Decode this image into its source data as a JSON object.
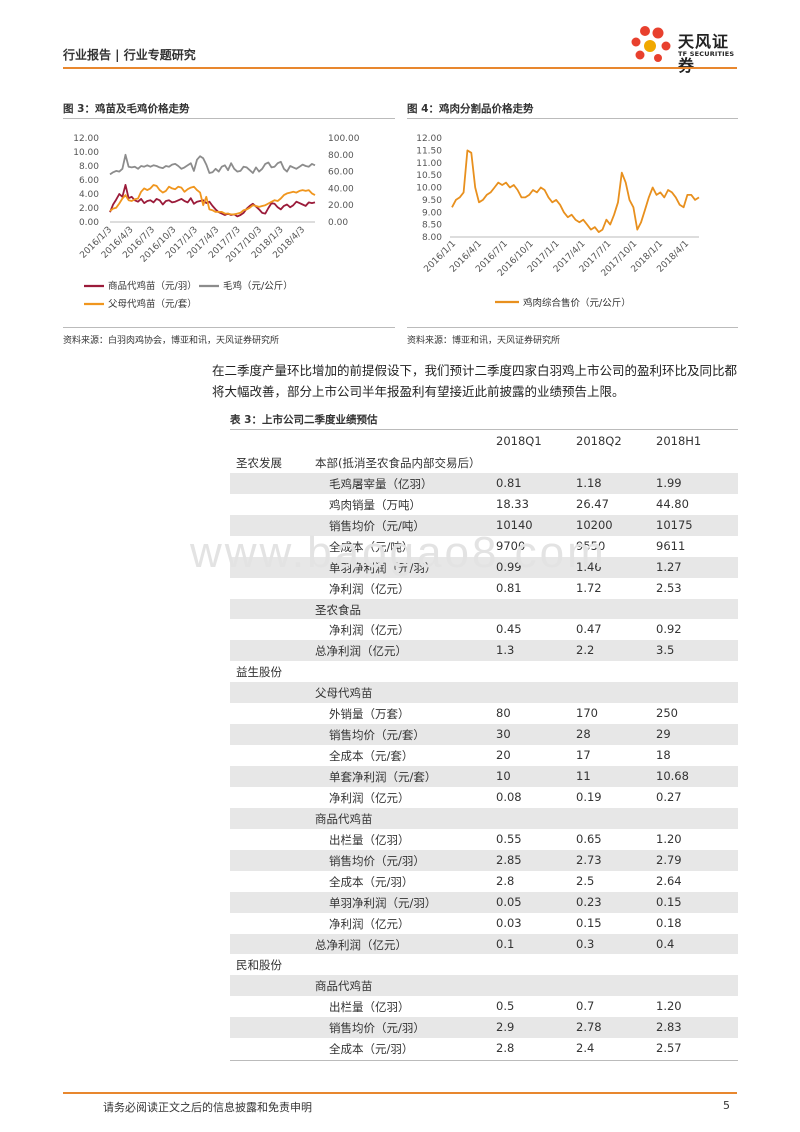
{
  "header": {
    "left": "行业报告 | 行业专题研究",
    "logo_cn": "天风证券",
    "logo_en": "TF SECURITIES"
  },
  "figure3": {
    "title": "图 3：鸡苗及毛鸡价格走势",
    "source": "资料来源：白羽肉鸡协会，博亚和讯，天风证券研究所"
  },
  "figure4": {
    "title": "图 4：鸡肉分割品价格走势",
    "source": "资料来源：博亚和讯，天风证券研究所"
  },
  "paragraph": "在二季度产量环比增加的前提假设下，我们预计二季度四家白羽鸡上市公司的盈利环比及同比都将大幅改善，部分上市公司半年报盈利有望接近此前披露的业绩预告上限。",
  "table": {
    "title": "表 3：上市公司二季度业绩预估",
    "headers": [
      "2018Q1",
      "2018Q2",
      "2018H1"
    ],
    "rows": [
      {
        "company": "圣农发展",
        "sub": "本部(抵消圣农食品内部交易后）",
        "item": "",
        "v": [
          "",
          "",
          ""
        ],
        "shade": false
      },
      {
        "company": "",
        "sub": "",
        "item": "毛鸡屠宰量（亿羽）",
        "v": [
          "0.81",
          "1.18",
          "1.99"
        ],
        "shade": true
      },
      {
        "company": "",
        "sub": "",
        "item": "鸡肉销量（万吨）",
        "v": [
          "18.33",
          "26.47",
          "44.80"
        ],
        "shade": false
      },
      {
        "company": "",
        "sub": "",
        "item": "销售均价（元/吨）",
        "v": [
          "10140",
          "10200",
          "10175"
        ],
        "shade": true
      },
      {
        "company": "",
        "sub": "",
        "item": "全成本（元/吨）",
        "v": [
          "9700",
          "9550",
          "9611"
        ],
        "shade": false
      },
      {
        "company": "",
        "sub": "",
        "item": "单羽净利润（元/羽）",
        "v": [
          "0.99",
          "1.46",
          "1.27"
        ],
        "shade": true
      },
      {
        "company": "",
        "sub": "",
        "item": "净利润（亿元）",
        "v": [
          "0.81",
          "1.72",
          "2.53"
        ],
        "shade": false
      },
      {
        "company": "",
        "sub": "圣农食品",
        "item": "",
        "v": [
          "",
          "",
          ""
        ],
        "shade": true
      },
      {
        "company": "",
        "sub": "",
        "item": "净利润（亿元）",
        "v": [
          "0.45",
          "0.47",
          "0.92"
        ],
        "shade": false
      },
      {
        "company": "",
        "sub": "总净利润（亿元）",
        "item": "",
        "v": [
          "1.3",
          "2.2",
          "3.5"
        ],
        "shade": true
      },
      {
        "company": "益生股份",
        "sub": "",
        "item": "",
        "v": [
          "",
          "",
          ""
        ],
        "shade": false
      },
      {
        "company": "",
        "sub": "父母代鸡苗",
        "item": "",
        "v": [
          "",
          "",
          ""
        ],
        "shade": true
      },
      {
        "company": "",
        "sub": "",
        "item": "外销量（万套）",
        "v": [
          "80",
          "170",
          "250"
        ],
        "shade": false
      },
      {
        "company": "",
        "sub": "",
        "item": "销售均价（元/套）",
        "v": [
          "30",
          "28",
          "29"
        ],
        "shade": true
      },
      {
        "company": "",
        "sub": "",
        "item": "全成本（元/套）",
        "v": [
          "20",
          "17",
          "18"
        ],
        "shade": false
      },
      {
        "company": "",
        "sub": "",
        "item": "单套净利润（元/套）",
        "v": [
          "10",
          "11",
          "10.68"
        ],
        "shade": true
      },
      {
        "company": "",
        "sub": "",
        "item": "净利润（亿元）",
        "v": [
          "0.08",
          "0.19",
          "0.27"
        ],
        "shade": false
      },
      {
        "company": "",
        "sub": "商品代鸡苗",
        "item": "",
        "v": [
          "",
          "",
          ""
        ],
        "shade": true
      },
      {
        "company": "",
        "sub": "",
        "item": "出栏量（亿羽）",
        "v": [
          "0.55",
          "0.65",
          "1.20"
        ],
        "shade": false
      },
      {
        "company": "",
        "sub": "",
        "item": "销售均价（元/羽）",
        "v": [
          "2.85",
          "2.73",
          "2.79"
        ],
        "shade": true
      },
      {
        "company": "",
        "sub": "",
        "item": "全成本（元/羽）",
        "v": [
          "2.8",
          "2.5",
          "2.64"
        ],
        "shade": false
      },
      {
        "company": "",
        "sub": "",
        "item": "单羽净利润（元/羽）",
        "v": [
          "0.05",
          "0.23",
          "0.15"
        ],
        "shade": true
      },
      {
        "company": "",
        "sub": "",
        "item": "净利润（亿元）",
        "v": [
          "0.03",
          "0.15",
          "0.18"
        ],
        "shade": false
      },
      {
        "company": "",
        "sub": "总净利润（亿元）",
        "item": "",
        "v": [
          "0.1",
          "0.3",
          "0.4"
        ],
        "shade": true
      },
      {
        "company": "民和股份",
        "sub": "",
        "item": "",
        "v": [
          "",
          "",
          ""
        ],
        "shade": false
      },
      {
        "company": "",
        "sub": "商品代鸡苗",
        "item": "",
        "v": [
          "",
          "",
          ""
        ],
        "shade": true
      },
      {
        "company": "",
        "sub": "",
        "item": "出栏量（亿羽）",
        "v": [
          "0.5",
          "0.7",
          "1.20"
        ],
        "shade": false
      },
      {
        "company": "",
        "sub": "",
        "item": "销售均价（元/羽）",
        "v": [
          "2.9",
          "2.78",
          "2.83"
        ],
        "shade": true
      },
      {
        "company": "",
        "sub": "",
        "item": "全成本（元/羽）",
        "v": [
          "2.8",
          "2.4",
          "2.57"
        ],
        "shade": false
      }
    ]
  },
  "watermark": "www.baogao8.com",
  "footer": {
    "text": "请务必阅读正文之后的信息披露和免责申明",
    "page": "5"
  },
  "colors": {
    "accent": "#e8872e",
    "chick_commercial": "#9b1b3a",
    "broiler": "#8c8c8c",
    "chick_parent": "#f0961e",
    "meat": "#e8901e"
  },
  "chart_data": [
    {
      "type": "line",
      "title": "图 3：鸡苗及毛鸡价格走势",
      "x_ticks": [
        "2016/1/3",
        "2016/4/3",
        "2016/7/3",
        "2016/10/3",
        "2017/1/3",
        "2017/4/3",
        "2017/7/3",
        "2017/10/3",
        "2018/1/3",
        "2018/4/3"
      ],
      "ylim_left": [
        0,
        12
      ],
      "yticks_left": [
        "0.00",
        "2.00",
        "4.00",
        "6.00",
        "8.00",
        "10.00",
        "12.00"
      ],
      "ylim_right": [
        0,
        100
      ],
      "yticks_right": [
        "0.00",
        "20.00",
        "40.00",
        "60.00",
        "80.00",
        "100.00"
      ],
      "legend_position": "bottom",
      "series": [
        {
          "name": "商品代鸡苗（元/羽）",
          "axis": "left",
          "values": [
            1.4,
            2.5,
            3.2,
            4.0,
            3.6,
            5.3,
            3.4,
            3.6,
            3.1,
            2.9,
            3.3,
            2.7,
            3.0,
            3.1,
            2.8,
            3.3,
            3.1,
            2.5,
            3.0,
            3.1,
            2.8,
            2.9,
            3.1,
            3.3,
            3.0,
            2.8,
            3.4,
            2.6,
            2.9,
            3.0,
            3.1,
            2.7,
            2.9,
            2.3,
            1.8,
            1.4,
            1.2,
            1.0,
            1.2,
            1.0,
            1.1,
            0.8,
            1.0,
            1.3,
            1.9,
            2.3,
            2.6,
            2.2,
            1.8,
            1.3,
            1.2,
            2.0,
            2.7,
            2.6,
            2.1,
            1.8,
            2.3,
            2.5,
            2.1,
            2.4,
            2.9,
            2.7,
            2.5,
            2.3,
            2.8,
            2.7,
            2.8
          ]
        },
        {
          "name": "毛鸡（元/公斤）",
          "axis": "left",
          "values": [
            6.8,
            7.1,
            7.3,
            7.2,
            7.6,
            9.6,
            7.9,
            7.8,
            7.9,
            7.6,
            8.0,
            7.9,
            8.1,
            7.9,
            8.1,
            8.0,
            7.8,
            7.7,
            8.0,
            7.9,
            8.2,
            8.3,
            8.0,
            7.6,
            7.8,
            8.1,
            8.4,
            7.3,
            8.9,
            9.4,
            9.1,
            8.2,
            7.0,
            7.1,
            7.6,
            7.2,
            7.9,
            8.1,
            7.4,
            8.4,
            7.6,
            7.2,
            7.3,
            7.9,
            7.8,
            7.4,
            7.0,
            7.8,
            7.2,
            7.6,
            8.3,
            8.5,
            7.8,
            7.9,
            8.4,
            8.6,
            7.6,
            7.2,
            8.0,
            7.8,
            7.6,
            7.9,
            8.2,
            8.0,
            7.9,
            8.3,
            8.1
          ]
        },
        {
          "name": "父母代鸡苗（元/套）",
          "axis": "right",
          "values": [
            13,
            16,
            17,
            22,
            28,
            32,
            26,
            25,
            27,
            28,
            36,
            40,
            38,
            40,
            44,
            43,
            38,
            35,
            37,
            42,
            40,
            39,
            42,
            41,
            36,
            39,
            41,
            42,
            38,
            35,
            20,
            30,
            15,
            14,
            12,
            12,
            12,
            10,
            10,
            9,
            9,
            10,
            11,
            14,
            15,
            17,
            20,
            19,
            18,
            19,
            20,
            22,
            24,
            26,
            25,
            28,
            32,
            34,
            35,
            36,
            35,
            37,
            38,
            37,
            38,
            34,
            32
          ]
        }
      ]
    },
    {
      "type": "line",
      "title": "图 4：鸡肉分割品价格走势",
      "x_ticks": [
        "2016/1/1",
        "2016/4/1",
        "2016/7/1",
        "2016/10/1",
        "2017/1/1",
        "2017/4/1",
        "2017/7/1",
        "2017/10/1",
        "2018/1/1",
        "2018/4/1"
      ],
      "ylim": [
        8.0,
        12.0
      ],
      "yticks": [
        "8.00",
        "8.50",
        "9.00",
        "9.50",
        "10.00",
        "10.50",
        "11.00",
        "11.50",
        "12.00"
      ],
      "legend_position": "bottom",
      "series": [
        {
          "name": "鸡肉综合售价（元/公斤）",
          "values": [
            9.2,
            9.5,
            9.6,
            9.8,
            11.5,
            11.4,
            10.0,
            9.4,
            9.5,
            9.7,
            9.8,
            10.0,
            10.2,
            10.1,
            10.2,
            10.0,
            10.1,
            9.9,
            9.6,
            9.6,
            9.7,
            9.9,
            9.8,
            10.0,
            9.9,
            9.6,
            9.4,
            9.5,
            9.3,
            9.0,
            8.8,
            8.9,
            8.7,
            8.6,
            8.7,
            8.5,
            8.3,
            8.4,
            8.2,
            8.3,
            8.7,
            8.5,
            8.9,
            9.4,
            10.6,
            10.2,
            9.5,
            9.2,
            8.3,
            8.6,
            9.1,
            9.6,
            10.0,
            9.7,
            9.8,
            9.6,
            9.9,
            9.8,
            9.6,
            9.3,
            9.2,
            9.7,
            9.7,
            9.5,
            9.6
          ]
        }
      ]
    }
  ]
}
